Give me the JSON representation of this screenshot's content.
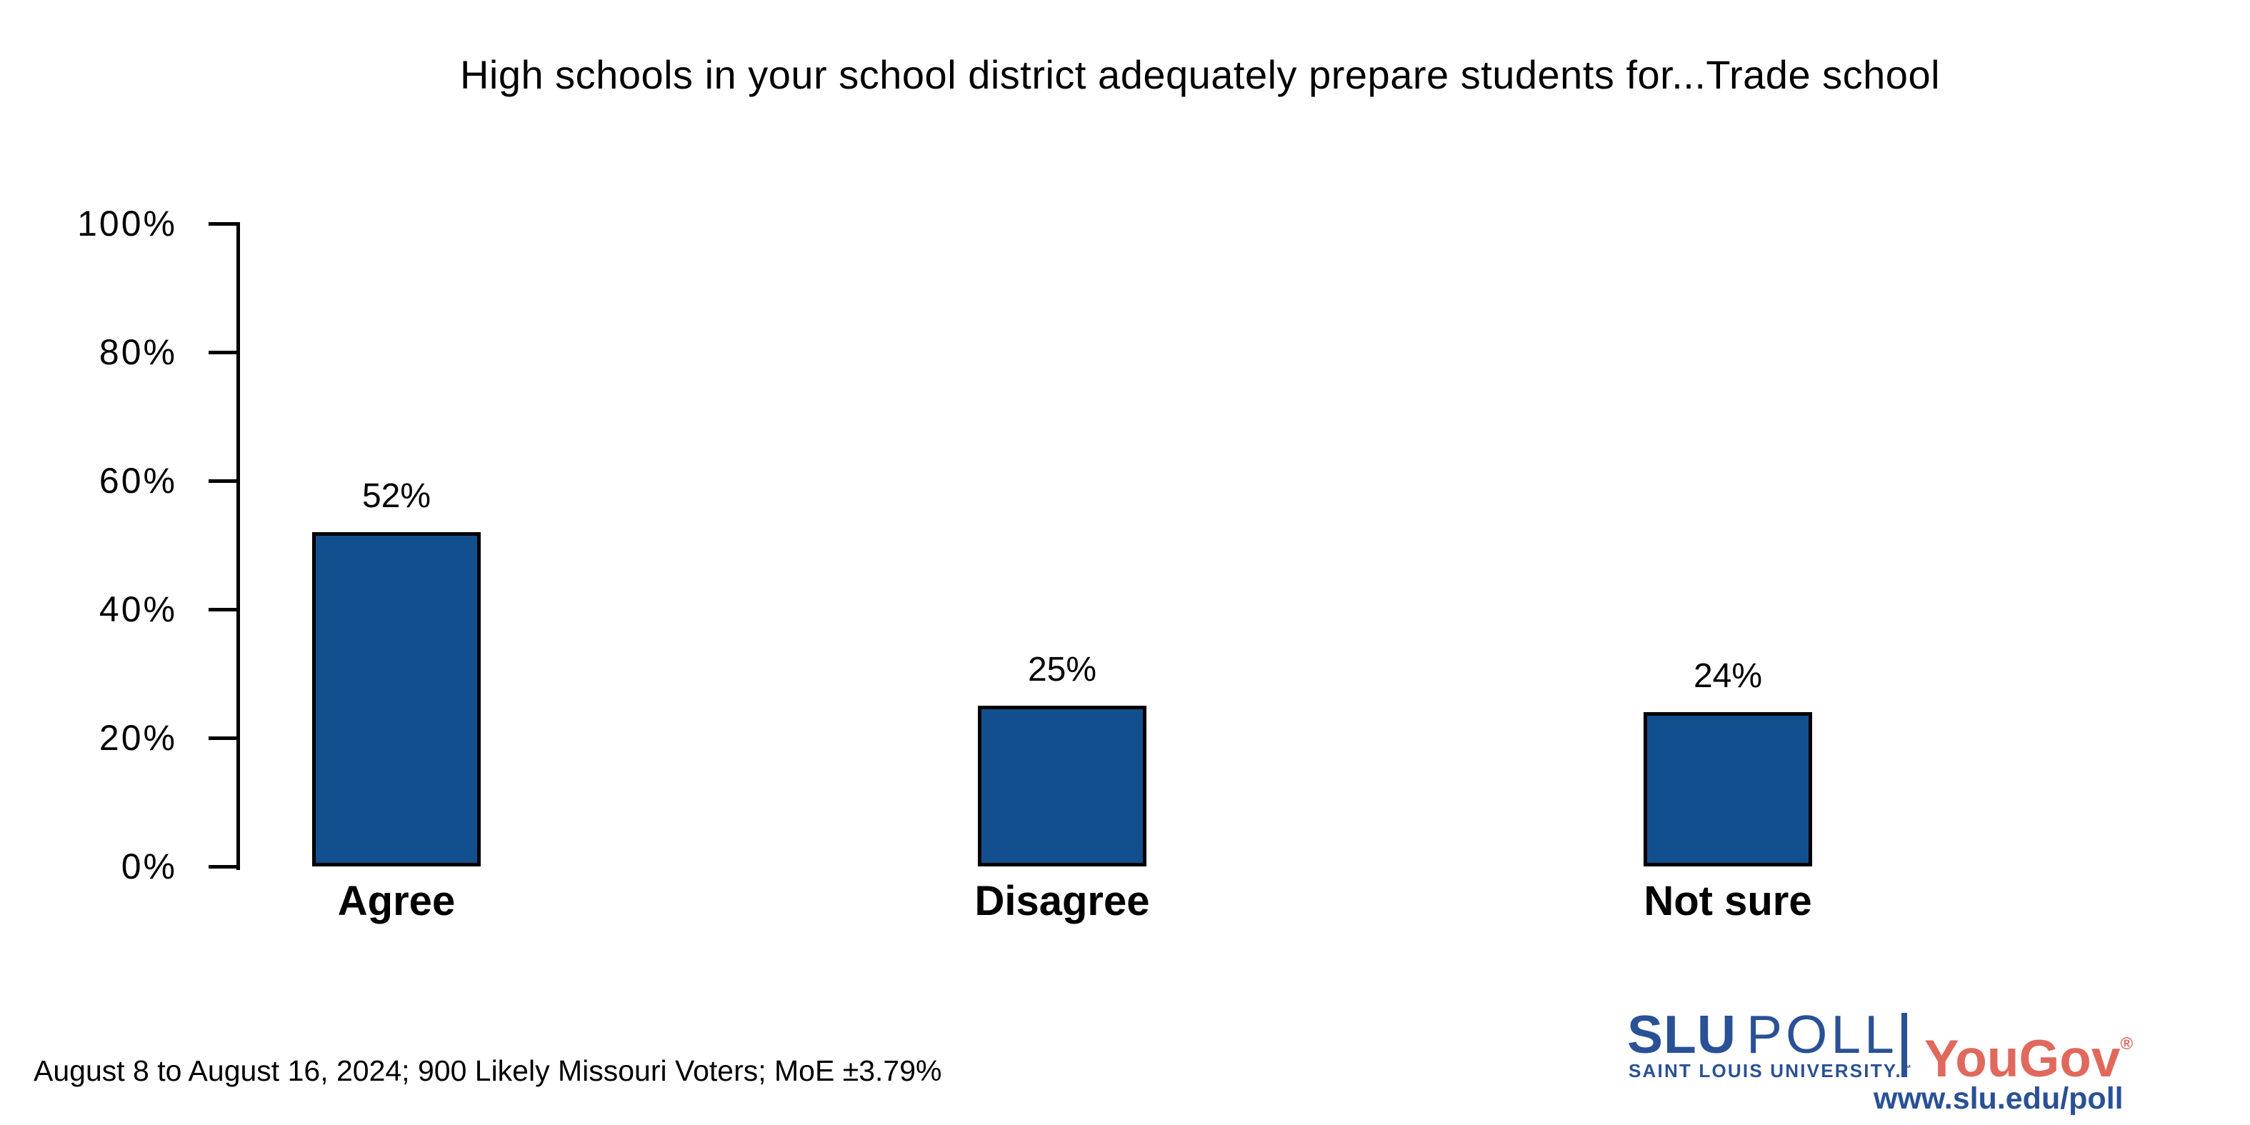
{
  "chart_data": {
    "type": "bar",
    "title": "High schools in your school district adequately prepare students for...Trade school",
    "categories": [
      "Agree",
      "Disagree",
      "Not sure"
    ],
    "values": [
      52,
      25,
      24
    ],
    "value_labels": [
      "52%",
      "25%",
      "24%"
    ],
    "xlabel": "",
    "ylabel": "",
    "ylim": [
      0,
      100
    ],
    "yticks": [
      0,
      20,
      40,
      60,
      80,
      100
    ],
    "ytick_labels": [
      "0%",
      "20%",
      "40%",
      "60%",
      "80%",
      "100%"
    ],
    "grid": false,
    "legend": false,
    "bar_color": "#124F8F",
    "bar_border_color": "#000000"
  },
  "footer": {
    "note": "August 8 to August 16, 2024; 900 Likely Missouri Voters; MoE ±3.79%"
  },
  "branding": {
    "slu_wordmark_bold": "SLU",
    "slu_wordmark_light": "POLL",
    "slu_subtitle": "SAINT LOUIS UNIVERSITY.",
    "slu_subtitle_tm": "™",
    "yougov": "YouGov",
    "yougov_reg": "®",
    "url": "www.slu.edu/poll"
  },
  "colors": {
    "slu_blue": "#2A5195",
    "yougov_red": "#E0685C",
    "background": "#FFFFFF",
    "text": "#000000"
  }
}
